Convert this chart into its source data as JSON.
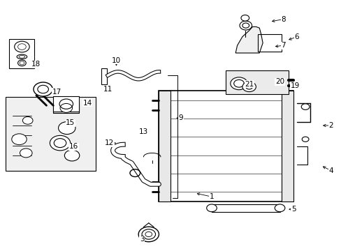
{
  "bg_color": "#ffffff",
  "line_color": "#000000",
  "fig_width": 4.89,
  "fig_height": 3.6,
  "dpi": 100,
  "font_size": 7.5,
  "label_positions": {
    "1": [
      0.62,
      0.215,
      0.57,
      0.23
    ],
    "2": [
      0.97,
      0.5,
      0.94,
      0.5
    ],
    "3": [
      0.415,
      0.045,
      0.43,
      0.058
    ],
    "4": [
      0.97,
      0.32,
      0.94,
      0.34
    ],
    "5": [
      0.86,
      0.165,
      0.84,
      0.165
    ],
    "6": [
      0.87,
      0.855,
      0.84,
      0.84
    ],
    "7": [
      0.83,
      0.82,
      0.8,
      0.815
    ],
    "8": [
      0.83,
      0.925,
      0.79,
      0.915
    ],
    "9": [
      0.53,
      0.53,
      0.51,
      0.53
    ],
    "10": [
      0.34,
      0.76,
      0.34,
      0.73
    ],
    "11": [
      0.315,
      0.645,
      0.315,
      0.66
    ],
    "12": [
      0.32,
      0.43,
      0.345,
      0.43
    ],
    "13": [
      0.42,
      0.475,
      0.4,
      0.47
    ],
    "14": [
      0.255,
      0.59,
      0.24,
      0.575
    ],
    "15": [
      0.205,
      0.51,
      0.19,
      0.51
    ],
    "16": [
      0.215,
      0.415,
      0.2,
      0.43
    ],
    "17": [
      0.165,
      0.635,
      0.148,
      0.628
    ],
    "18": [
      0.105,
      0.745,
      0.085,
      0.745
    ],
    "19": [
      0.865,
      0.66,
      0.845,
      0.66
    ],
    "20": [
      0.82,
      0.675,
      0.8,
      0.67
    ],
    "21": [
      0.73,
      0.665,
      0.75,
      0.665
    ]
  }
}
